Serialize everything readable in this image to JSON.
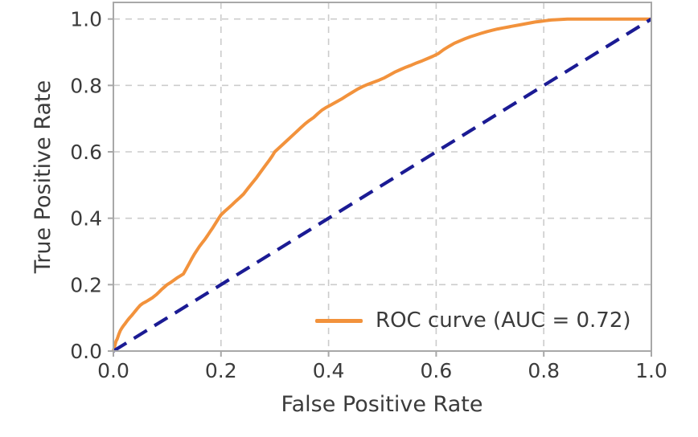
{
  "chart_data": {
    "type": "line",
    "title": "",
    "xlabel": "False Positive Rate",
    "ylabel": "True Positive Rate",
    "xlim": [
      0.0,
      1.0
    ],
    "ylim": [
      0.0,
      1.05
    ],
    "xtick_labels": [
      "0.0",
      "0.2",
      "0.4",
      "0.6",
      "0.8",
      "1.0"
    ],
    "xtick_values": [
      0.0,
      0.2,
      0.4,
      0.6,
      0.8,
      1.0
    ],
    "ytick_labels": [
      "0.0",
      "0.2",
      "0.4",
      "0.6",
      "0.8",
      "1.0"
    ],
    "ytick_values": [
      0.0,
      0.2,
      0.4,
      0.6,
      0.8,
      1.0
    ],
    "grid": {
      "visible": true,
      "style": "dashed"
    },
    "auc": 0.72,
    "legend": {
      "label": "ROC curve (AUC = 0.72)",
      "position": "lower right",
      "frame": false
    },
    "colors": {
      "roc": "#f2923c",
      "diagonal": "#1b1b94",
      "grid": "#cccccc",
      "spine": "#a8a8a8",
      "tick": "#a8a8a8",
      "text": "#3b3b3b",
      "background": "#ffffff"
    },
    "series": [
      {
        "name": "ROC curve (AUC = 0.72)",
        "color": "#f2923c",
        "line_style": "solid",
        "line_width": 4,
        "points": [
          [
            0.0,
            0.0
          ],
          [
            0.003,
            0.018
          ],
          [
            0.005,
            0.03
          ],
          [
            0.007,
            0.036
          ],
          [
            0.01,
            0.05
          ],
          [
            0.013,
            0.062
          ],
          [
            0.016,
            0.07
          ],
          [
            0.019,
            0.077
          ],
          [
            0.022,
            0.083
          ],
          [
            0.026,
            0.092
          ],
          [
            0.03,
            0.1
          ],
          [
            0.034,
            0.107
          ],
          [
            0.038,
            0.115
          ],
          [
            0.042,
            0.123
          ],
          [
            0.046,
            0.131
          ],
          [
            0.05,
            0.138
          ],
          [
            0.055,
            0.144
          ],
          [
            0.06,
            0.148
          ],
          [
            0.064,
            0.152
          ],
          [
            0.068,
            0.156
          ],
          [
            0.072,
            0.16
          ],
          [
            0.076,
            0.165
          ],
          [
            0.08,
            0.17
          ],
          [
            0.085,
            0.178
          ],
          [
            0.09,
            0.186
          ],
          [
            0.095,
            0.193
          ],
          [
            0.1,
            0.2
          ],
          [
            0.106,
            0.206
          ],
          [
            0.112,
            0.213
          ],
          [
            0.118,
            0.22
          ],
          [
            0.124,
            0.226
          ],
          [
            0.13,
            0.232
          ],
          [
            0.135,
            0.246
          ],
          [
            0.14,
            0.261
          ],
          [
            0.145,
            0.276
          ],
          [
            0.15,
            0.29
          ],
          [
            0.155,
            0.303
          ],
          [
            0.16,
            0.315
          ],
          [
            0.165,
            0.326
          ],
          [
            0.17,
            0.336
          ],
          [
            0.175,
            0.348
          ],
          [
            0.18,
            0.36
          ],
          [
            0.185,
            0.372
          ],
          [
            0.19,
            0.385
          ],
          [
            0.195,
            0.398
          ],
          [
            0.2,
            0.41
          ],
          [
            0.207,
            0.421
          ],
          [
            0.214,
            0.431
          ],
          [
            0.221,
            0.441
          ],
          [
            0.228,
            0.452
          ],
          [
            0.235,
            0.462
          ],
          [
            0.242,
            0.473
          ],
          [
            0.25,
            0.49
          ],
          [
            0.258,
            0.506
          ],
          [
            0.266,
            0.522
          ],
          [
            0.274,
            0.54
          ],
          [
            0.282,
            0.558
          ],
          [
            0.29,
            0.575
          ],
          [
            0.295,
            0.587
          ],
          [
            0.3,
            0.6
          ],
          [
            0.308,
            0.612
          ],
          [
            0.316,
            0.624
          ],
          [
            0.324,
            0.636
          ],
          [
            0.332,
            0.648
          ],
          [
            0.34,
            0.66
          ],
          [
            0.348,
            0.672
          ],
          [
            0.356,
            0.684
          ],
          [
            0.364,
            0.694
          ],
          [
            0.372,
            0.703
          ],
          [
            0.38,
            0.715
          ],
          [
            0.388,
            0.726
          ],
          [
            0.396,
            0.734
          ],
          [
            0.404,
            0.741
          ],
          [
            0.414,
            0.75
          ],
          [
            0.424,
            0.759
          ],
          [
            0.434,
            0.769
          ],
          [
            0.444,
            0.779
          ],
          [
            0.454,
            0.789
          ],
          [
            0.464,
            0.797
          ],
          [
            0.474,
            0.804
          ],
          [
            0.484,
            0.81
          ],
          [
            0.494,
            0.816
          ],
          [
            0.504,
            0.823
          ],
          [
            0.514,
            0.832
          ],
          [
            0.524,
            0.841
          ],
          [
            0.534,
            0.848
          ],
          [
            0.544,
            0.855
          ],
          [
            0.554,
            0.861
          ],
          [
            0.564,
            0.868
          ],
          [
            0.574,
            0.874
          ],
          [
            0.584,
            0.881
          ],
          [
            0.594,
            0.888
          ],
          [
            0.604,
            0.896
          ],
          [
            0.614,
            0.908
          ],
          [
            0.624,
            0.918
          ],
          [
            0.634,
            0.927
          ],
          [
            0.644,
            0.934
          ],
          [
            0.654,
            0.941
          ],
          [
            0.664,
            0.947
          ],
          [
            0.674,
            0.952
          ],
          [
            0.684,
            0.957
          ],
          [
            0.694,
            0.962
          ],
          [
            0.704,
            0.966
          ],
          [
            0.714,
            0.97
          ],
          [
            0.724,
            0.973
          ],
          [
            0.734,
            0.976
          ],
          [
            0.744,
            0.979
          ],
          [
            0.754,
            0.982
          ],
          [
            0.764,
            0.985
          ],
          [
            0.774,
            0.988
          ],
          [
            0.784,
            0.991
          ],
          [
            0.794,
            0.993
          ],
          [
            0.804,
            0.995
          ],
          [
            0.814,
            0.997
          ],
          [
            0.824,
            0.998
          ],
          [
            0.834,
            0.999
          ],
          [
            0.844,
            1.0
          ],
          [
            1.0,
            1.0
          ]
        ]
      },
      {
        "name": "chance-diagonal",
        "color": "#1b1b94",
        "line_style": "dashed",
        "line_width": 4.2,
        "points": [
          [
            0.0,
            0.0
          ],
          [
            1.0,
            1.0
          ]
        ]
      }
    ]
  }
}
